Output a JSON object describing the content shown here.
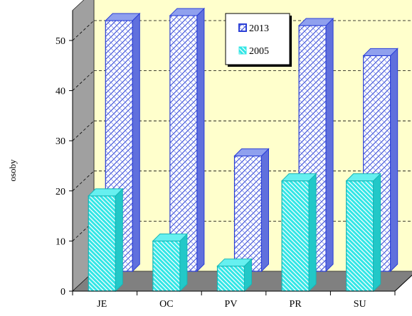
{
  "chart_data": {
    "type": "bar",
    "title": "",
    "xlabel": "",
    "ylabel": "osoby",
    "ylim": [
      0,
      50
    ],
    "yticks": [
      0,
      10,
      20,
      30,
      40,
      50
    ],
    "grid": true,
    "legend_position": "top-center",
    "categories": [
      "JE",
      "OC",
      "PV",
      "PR",
      "SU"
    ],
    "series": [
      {
        "name": "2013",
        "values": [
          50,
          51,
          23,
          49,
          43
        ],
        "color": "#2b3fd6",
        "pattern": "blue-crosshatch"
      },
      {
        "name": "2005",
        "values": [
          19,
          10,
          5,
          22,
          22
        ],
        "color": "#33e6e6",
        "pattern": "cyan-diagonal"
      }
    ],
    "colors": {
      "back_wall": "#ffffcc",
      "side_wall": "#a0a0a0",
      "floor": "#808080",
      "grid": "#000000"
    }
  }
}
